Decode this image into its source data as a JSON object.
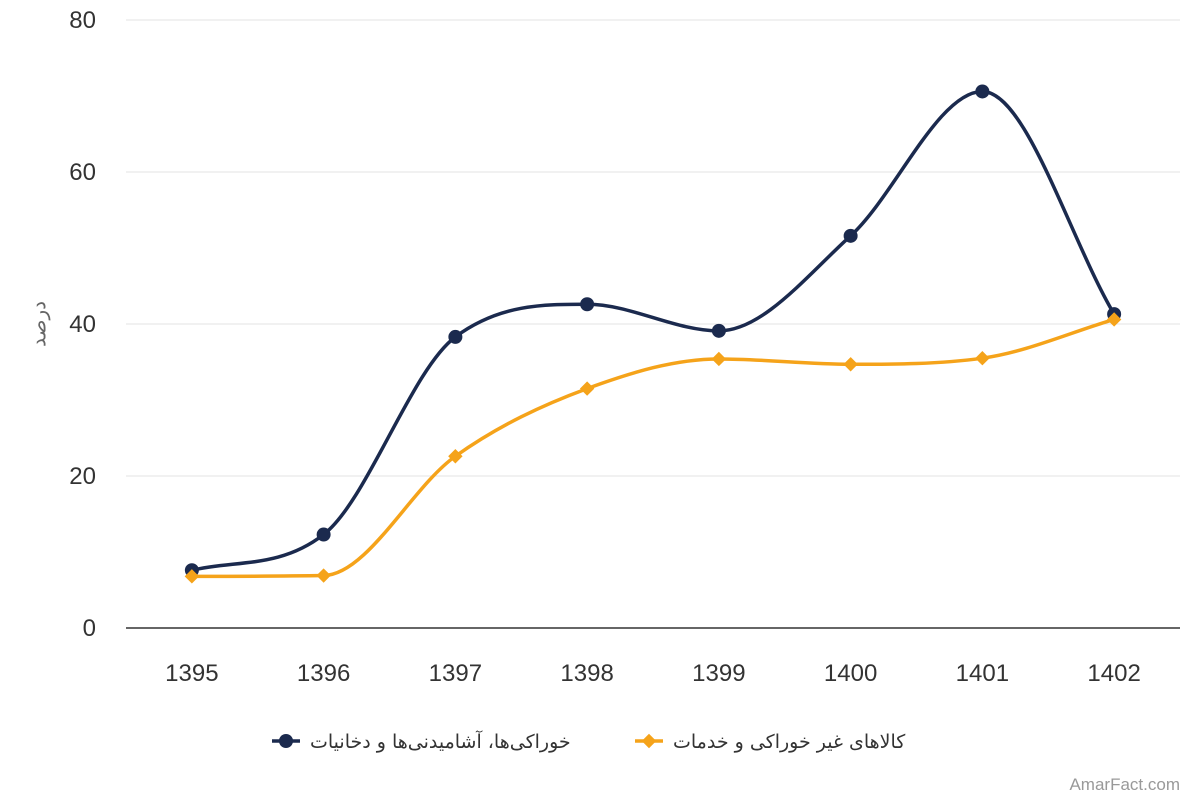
{
  "chart_data": {
    "type": "line",
    "title": "",
    "xlabel": "",
    "ylabel": "درصد",
    "categories": [
      "1395",
      "1396",
      "1397",
      "1398",
      "1399",
      "1400",
      "1401",
      "1402"
    ],
    "ylim": [
      0,
      80
    ],
    "yticks": [
      "0",
      "20",
      "40",
      "60",
      "80"
    ],
    "grid": true,
    "smooth": true,
    "legend_position": "bottom",
    "series": [
      {
        "name": "خوراکی‌ها، آشامیدنی‌ها و دخانیات",
        "color": "#1b2a4e",
        "marker": "circle",
        "values": [
          7.6,
          12.3,
          38.3,
          42.6,
          39.1,
          51.6,
          70.6,
          41.3
        ]
      },
      {
        "name": "کالاهای غیر خوراکی و خدمات",
        "color": "#f5a31a",
        "marker": "diamond",
        "values": [
          6.8,
          6.9,
          22.6,
          31.5,
          35.4,
          34.7,
          35.5,
          40.6
        ]
      }
    ]
  },
  "credit": "AmarFact.com"
}
